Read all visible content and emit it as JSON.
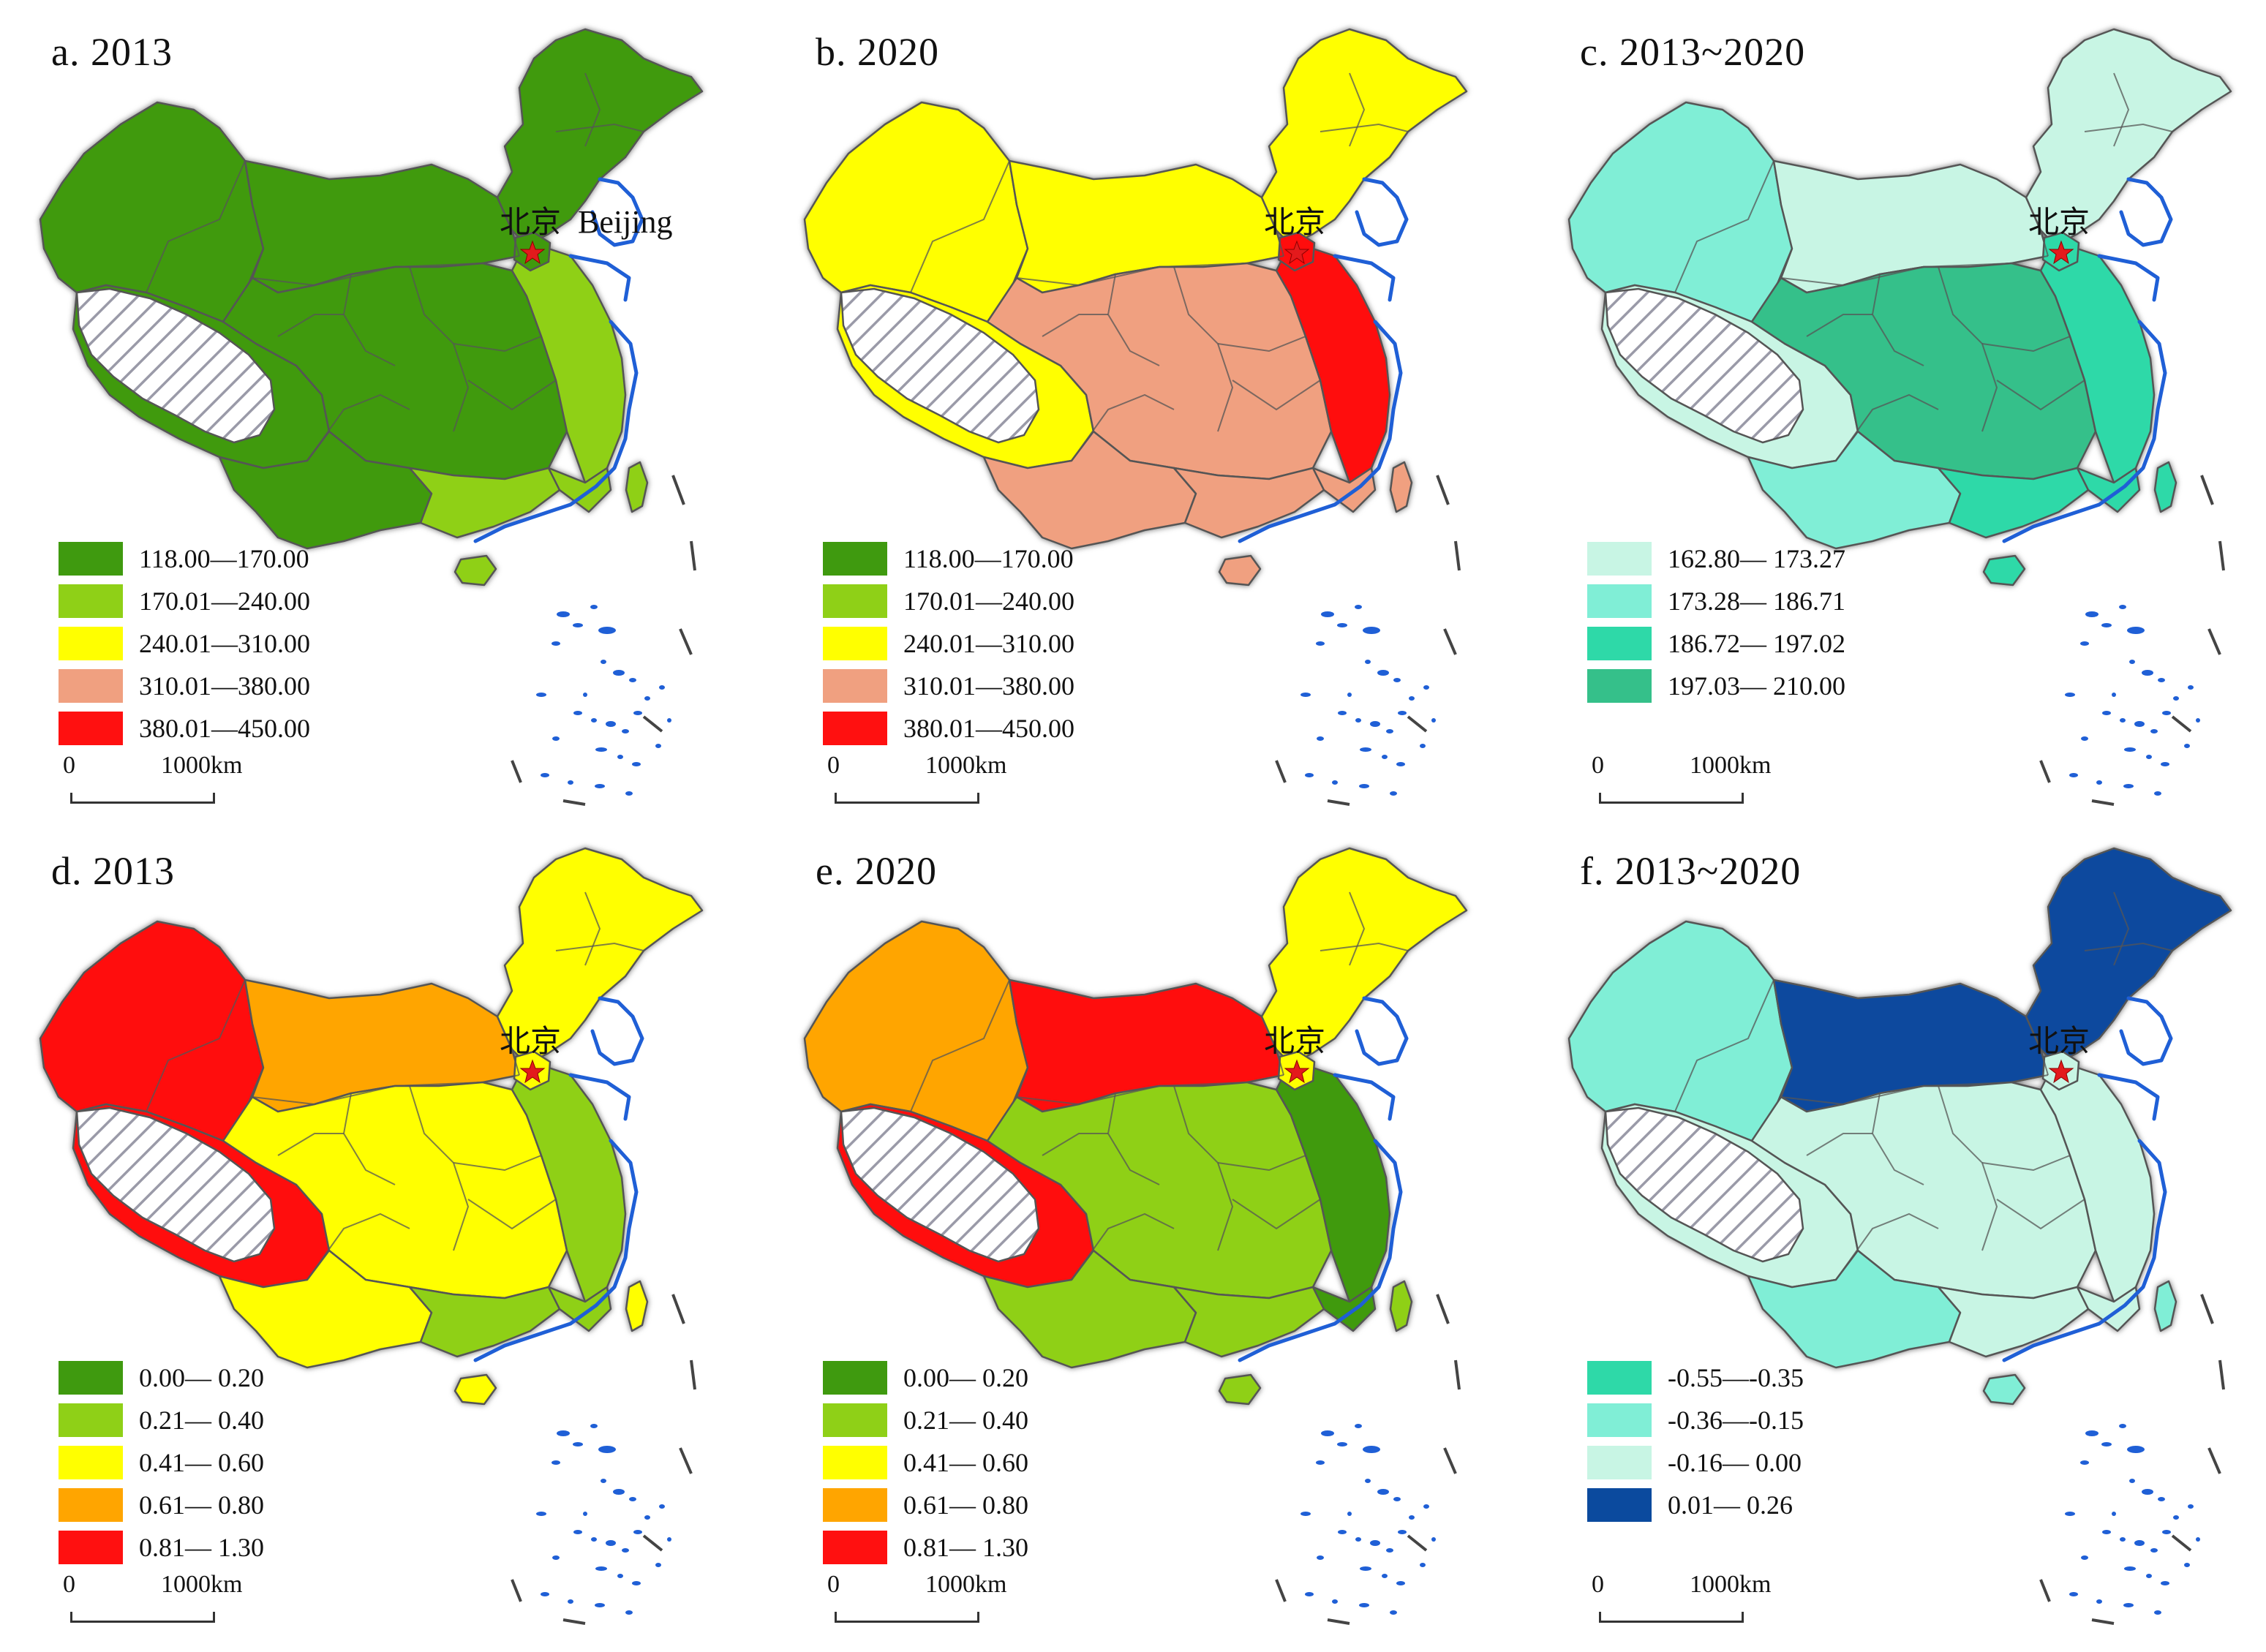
{
  "beijing": {
    "label_cn": "北京",
    "label_en": "Beijing"
  },
  "scale": {
    "zero": "0",
    "distance": "1000km"
  },
  "colors": {
    "border": "#555555",
    "coast": "#1f5fd6",
    "marker": "#e31a1c",
    "hatch_stroke": "#9a9aa8",
    "hatch_bg": "#ffffff"
  },
  "panels": [
    {
      "id": "a",
      "title": "a. 2013",
      "show_beijing_en": true,
      "legend": [
        {
          "label": "118.00—170.00",
          "color": "#3f9a0f"
        },
        {
          "label": "170.01—240.00",
          "color": "#8fd017"
        },
        {
          "label": "240.01—310.00",
          "color": "#ffff00"
        },
        {
          "label": "310.01—380.00",
          "color": "#f0a080"
        },
        {
          "label": "380.01—450.00",
          "color": "#ff1010"
        }
      ],
      "regions": {
        "west": 0,
        "north": 0,
        "northeast": 0,
        "northwest": 0,
        "central": 0,
        "beijing": 0,
        "east": 1,
        "south": 1,
        "southeast": 1,
        "southwest": 0,
        "hainan": 1,
        "taiwan": 1
      }
    },
    {
      "id": "b",
      "title": "b. 2020",
      "show_beijing_en": false,
      "legend": [
        {
          "label": "118.00—170.00",
          "color": "#3f9a0f"
        },
        {
          "label": "170.01—240.00",
          "color": "#8fd017"
        },
        {
          "label": "240.01—310.00",
          "color": "#ffff00"
        },
        {
          "label": "310.01—380.00",
          "color": "#f0a080"
        },
        {
          "label": "380.01—450.00",
          "color": "#ff1010"
        }
      ],
      "regions": {
        "west": 2,
        "north": 2,
        "northeast": 2,
        "northwest": 2,
        "central": 3,
        "beijing": 4,
        "east": 4,
        "south": 3,
        "southeast": 3,
        "southwest": 3,
        "hainan": 3,
        "taiwan": 3
      }
    },
    {
      "id": "c",
      "title": "c. 2013~2020",
      "show_beijing_en": false,
      "legend": [
        {
          "label": "162.80— 173.27",
          "color": "#c8f5e4"
        },
        {
          "label": "173.28— 186.71",
          "color": "#80eed6"
        },
        {
          "label": "186.72— 197.02",
          "color": "#2ed9a8"
        },
        {
          "label": "197.03— 210.00",
          "color": "#35c08a"
        }
      ],
      "regions": {
        "west": 0,
        "north": 0,
        "northeast": 0,
        "northwest": 1,
        "central": 3,
        "beijing": 2,
        "east": 2,
        "south": 2,
        "southeast": 2,
        "southwest": 1,
        "hainan": 2,
        "taiwan": 2
      }
    },
    {
      "id": "d",
      "title": "d. 2013",
      "show_beijing_en": false,
      "legend": [
        {
          "label": "0.00— 0.20",
          "color": "#3f9a0f"
        },
        {
          "label": "0.21— 0.40",
          "color": "#8fd017"
        },
        {
          "label": "0.41— 0.60",
          "color": "#ffff00"
        },
        {
          "label": "0.61— 0.80",
          "color": "#ffa500"
        },
        {
          "label": "0.81— 1.30",
          "color": "#ff1010"
        }
      ],
      "regions": {
        "west": 4,
        "north": 3,
        "northeast": 2,
        "northwest": 4,
        "central": 2,
        "beijing": 2,
        "east": 1,
        "south": 1,
        "southeast": 1,
        "southwest": 2,
        "hainan": 2,
        "taiwan": 2
      }
    },
    {
      "id": "e",
      "title": "e. 2020",
      "show_beijing_en": false,
      "legend": [
        {
          "label": "0.00— 0.20",
          "color": "#3f9a0f"
        },
        {
          "label": "0.21— 0.40",
          "color": "#8fd017"
        },
        {
          "label": "0.41— 0.60",
          "color": "#ffff00"
        },
        {
          "label": "0.61— 0.80",
          "color": "#ffa500"
        },
        {
          "label": "0.81— 1.30",
          "color": "#ff1010"
        }
      ],
      "regions": {
        "west": 4,
        "north": 4,
        "northeast": 2,
        "northwest": 3,
        "central": 1,
        "beijing": 2,
        "east": 0,
        "south": 1,
        "southeast": 0,
        "southwest": 1,
        "hainan": 1,
        "taiwan": 1
      }
    },
    {
      "id": "f",
      "title": "f. 2013~2020",
      "show_beijing_en": false,
      "legend": [
        {
          "label": "-0.55—-0.35",
          "color": "#2ed9a8"
        },
        {
          "label": "-0.36—-0.15",
          "color": "#80eed6"
        },
        {
          "label": "-0.16— 0.00",
          "color": "#c8f5e4"
        },
        {
          "label": "0.01— 0.26",
          "color": "#0b4a9e"
        }
      ],
      "regions": {
        "west": 2,
        "north": 3,
        "northeast": 3,
        "northwest": 1,
        "central": 2,
        "beijing": 2,
        "east": 2,
        "south": 2,
        "southeast": 2,
        "southwest": 1,
        "hainan": 1,
        "taiwan": 1
      }
    }
  ]
}
